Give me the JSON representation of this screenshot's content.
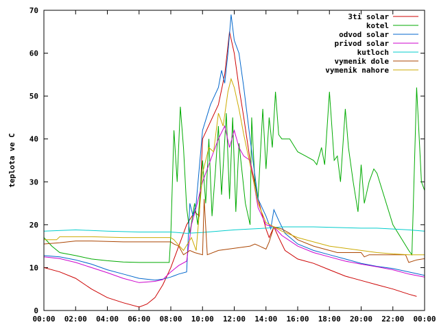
{
  "chart_data": {
    "type": "line",
    "title": "",
    "xlabel": "",
    "ylabel": "teplota ve C",
    "xlim": [
      "00:00",
      "24:00"
    ],
    "ylim": [
      0,
      70
    ],
    "x_ticks": [
      "00:00",
      "02:00",
      "04:00",
      "06:00",
      "08:00",
      "10:00",
      "12:00",
      "14:00",
      "16:00",
      "18:00",
      "20:00",
      "22:00",
      "00:00"
    ],
    "y_ticks": [
      0,
      10,
      20,
      30,
      40,
      50,
      60,
      70
    ],
    "grid": false,
    "legend_position": "top-right",
    "series": [
      {
        "name": "3ti solar",
        "color": "#cc0000",
        "points": [
          [
            0,
            10
          ],
          [
            1,
            9
          ],
          [
            2,
            7.5
          ],
          [
            3,
            5
          ],
          [
            4,
            3
          ],
          [
            5,
            1.8
          ],
          [
            6,
            0.8
          ],
          [
            6.5,
            1.5
          ],
          [
            7,
            3
          ],
          [
            7.5,
            6
          ],
          [
            8,
            10
          ],
          [
            8.5,
            15
          ],
          [
            9,
            20
          ],
          [
            9.5,
            23
          ],
          [
            9.8,
            22
          ],
          [
            10,
            40
          ],
          [
            10.5,
            44
          ],
          [
            11,
            48
          ],
          [
            11.4,
            55
          ],
          [
            11.7,
            65
          ],
          [
            12,
            60
          ],
          [
            12.3,
            52
          ],
          [
            12.6,
            45
          ],
          [
            13,
            35
          ],
          [
            13.5,
            26
          ],
          [
            14,
            19
          ],
          [
            14.2,
            17
          ],
          [
            14.5,
            19.5
          ],
          [
            14.8,
            17
          ],
          [
            15.2,
            14
          ],
          [
            16,
            12
          ],
          [
            17,
            11
          ],
          [
            18,
            9.5
          ],
          [
            19,
            8
          ],
          [
            20,
            7
          ],
          [
            21,
            6
          ],
          [
            22,
            5
          ],
          [
            23,
            3.8
          ],
          [
            23.5,
            3.3
          ]
        ]
      },
      {
        "name": "kotel",
        "color": "#00aa00",
        "points": [
          [
            0,
            17
          ],
          [
            0.5,
            15
          ],
          [
            1,
            13.5
          ],
          [
            2,
            12.8
          ],
          [
            3,
            12
          ],
          [
            4,
            11.6
          ],
          [
            5,
            11.3
          ],
          [
            6,
            11.2
          ],
          [
            7,
            11.2
          ],
          [
            7.9,
            11.2
          ],
          [
            8,
            17.5
          ],
          [
            8.2,
            42
          ],
          [
            8.4,
            30
          ],
          [
            8.6,
            47.5
          ],
          [
            8.8,
            38
          ],
          [
            9,
            24
          ],
          [
            9.2,
            18
          ],
          [
            9.5,
            25
          ],
          [
            9.7,
            20
          ],
          [
            10,
            35
          ],
          [
            10.2,
            25
          ],
          [
            10.4,
            40
          ],
          [
            10.6,
            22
          ],
          [
            10.8,
            32
          ],
          [
            11,
            43
          ],
          [
            11.2,
            27
          ],
          [
            11.5,
            46
          ],
          [
            11.7,
            26
          ],
          [
            11.9,
            45
          ],
          [
            12.1,
            23
          ],
          [
            12.3,
            39
          ],
          [
            12.5,
            32
          ],
          [
            12.7,
            25
          ],
          [
            13,
            20
          ],
          [
            13.1,
            45
          ],
          [
            13.3,
            30
          ],
          [
            13.5,
            26
          ],
          [
            13.8,
            47
          ],
          [
            14,
            33
          ],
          [
            14.2,
            45
          ],
          [
            14.4,
            38
          ],
          [
            14.6,
            51
          ],
          [
            14.8,
            41
          ],
          [
            15,
            40
          ],
          [
            15.5,
            40
          ],
          [
            16,
            37
          ],
          [
            16.5,
            36
          ],
          [
            17,
            35
          ],
          [
            17.2,
            34
          ],
          [
            17.5,
            38
          ],
          [
            17.7,
            34
          ],
          [
            18,
            51
          ],
          [
            18.3,
            35
          ],
          [
            18.5,
            36
          ],
          [
            18.7,
            30
          ],
          [
            19,
            47
          ],
          [
            19.2,
            38
          ],
          [
            19.5,
            30
          ],
          [
            19.8,
            23
          ],
          [
            20,
            34
          ],
          [
            20.2,
            25
          ],
          [
            20.5,
            30
          ],
          [
            20.8,
            33
          ],
          [
            21,
            32
          ],
          [
            22,
            20
          ],
          [
            23,
            14
          ],
          [
            23.2,
            13
          ],
          [
            23.5,
            52
          ],
          [
            23.8,
            30
          ],
          [
            24,
            28
          ],
          [
            24.2,
            18
          ]
        ]
      },
      {
        "name": "odvod solar",
        "color": "#0066cc",
        "points": [
          [
            0,
            12.8
          ],
          [
            1,
            12.5
          ],
          [
            2,
            11.8
          ],
          [
            3,
            10.8
          ],
          [
            4,
            9.5
          ],
          [
            5,
            8.5
          ],
          [
            6,
            7.5
          ],
          [
            7,
            7.1
          ],
          [
            7.5,
            7.3
          ],
          [
            8,
            7.8
          ],
          [
            8.5,
            8.5
          ],
          [
            9,
            9
          ],
          [
            9.2,
            25
          ],
          [
            9.4,
            22
          ],
          [
            9.6,
            25
          ],
          [
            10,
            42
          ],
          [
            10.5,
            48
          ],
          [
            11,
            52
          ],
          [
            11.2,
            56
          ],
          [
            11.4,
            53
          ],
          [
            11.6,
            60
          ],
          [
            11.8,
            69
          ],
          [
            12,
            63
          ],
          [
            12.3,
            60
          ],
          [
            12.6,
            52
          ],
          [
            13,
            40
          ],
          [
            13.5,
            26
          ],
          [
            14,
            22
          ],
          [
            14.3,
            19
          ],
          [
            14.5,
            23.5
          ],
          [
            14.8,
            21
          ],
          [
            15.2,
            18
          ],
          [
            16,
            15.5
          ],
          [
            17,
            14
          ],
          [
            18,
            13
          ],
          [
            19,
            12
          ],
          [
            20,
            11
          ],
          [
            21,
            10.3
          ],
          [
            22,
            9.8
          ],
          [
            23,
            9
          ],
          [
            24,
            8.2
          ]
        ]
      },
      {
        "name": "privod solar",
        "color": "#cc00cc",
        "points": [
          [
            0,
            12.5
          ],
          [
            1,
            12.1
          ],
          [
            2,
            11.2
          ],
          [
            3,
            10
          ],
          [
            4,
            8.8
          ],
          [
            5,
            7.5
          ],
          [
            6,
            6.5
          ],
          [
            7,
            6.8
          ],
          [
            7.5,
            7.2
          ],
          [
            8,
            9
          ],
          [
            8.5,
            10.5
          ],
          [
            9,
            11.5
          ],
          [
            9.3,
            20
          ],
          [
            9.6,
            24
          ],
          [
            10,
            30
          ],
          [
            10.5,
            35
          ],
          [
            11,
            40
          ],
          [
            11.4,
            43
          ],
          [
            11.7,
            38
          ],
          [
            12,
            42
          ],
          [
            12.3,
            38
          ],
          [
            12.6,
            36
          ],
          [
            13,
            35
          ],
          [
            13.5,
            24
          ],
          [
            14,
            20
          ],
          [
            14.5,
            19.5
          ],
          [
            15,
            17.5
          ],
          [
            16,
            15
          ],
          [
            17,
            13.5
          ],
          [
            18,
            12.5
          ],
          [
            19,
            11.5
          ],
          [
            20,
            10.8
          ],
          [
            21,
            10.2
          ],
          [
            22,
            9.5
          ],
          [
            23,
            8.5
          ],
          [
            24,
            7.8
          ]
        ]
      },
      {
        "name": "kutloch",
        "color": "#00cccc",
        "points": [
          [
            0,
            18.5
          ],
          [
            2,
            18.8
          ],
          [
            4,
            18.5
          ],
          [
            6,
            18.3
          ],
          [
            8,
            18.3
          ],
          [
            9,
            18
          ],
          [
            10,
            18.2
          ],
          [
            11,
            18.5
          ],
          [
            12,
            18.8
          ],
          [
            13,
            19
          ],
          [
            14,
            19.2
          ],
          [
            15,
            19.5
          ],
          [
            16,
            19.5
          ],
          [
            17,
            19.5
          ],
          [
            18,
            19.4
          ],
          [
            19,
            19.3
          ],
          [
            20,
            19.2
          ],
          [
            21,
            19.2
          ],
          [
            22,
            19
          ],
          [
            23,
            18.8
          ],
          [
            24,
            18.5
          ]
        ]
      },
      {
        "name": "vymenik dole",
        "color": "#aa4400",
        "points": [
          [
            0,
            15.5
          ],
          [
            1,
            15.8
          ],
          [
            2,
            16.2
          ],
          [
            3,
            16.2
          ],
          [
            4,
            16.1
          ],
          [
            5,
            16
          ],
          [
            6,
            16
          ],
          [
            7,
            16
          ],
          [
            8,
            16
          ],
          [
            8.2,
            15.5
          ],
          [
            8.5,
            15
          ],
          [
            8.8,
            13
          ],
          [
            9.2,
            14
          ],
          [
            9.5,
            13.5
          ],
          [
            10,
            13
          ],
          [
            10.1,
            26
          ],
          [
            10.3,
            13
          ],
          [
            11,
            14
          ],
          [
            12,
            14.5
          ],
          [
            13,
            15
          ],
          [
            13.3,
            15.5
          ],
          [
            13.6,
            15
          ],
          [
            14,
            14.3
          ],
          [
            14.2,
            16
          ],
          [
            14.5,
            19.5
          ],
          [
            15,
            19
          ],
          [
            15.5,
            18
          ],
          [
            16,
            16.5
          ],
          [
            17,
            15
          ],
          [
            18,
            14
          ],
          [
            18.5,
            13.5
          ],
          [
            19,
            13.5
          ],
          [
            20,
            13.5
          ],
          [
            20.2,
            12.5
          ],
          [
            20.5,
            13
          ],
          [
            21,
            13
          ],
          [
            22,
            13
          ],
          [
            22.8,
            13
          ],
          [
            23,
            11.2
          ],
          [
            23.5,
            11.8
          ],
          [
            24.2,
            12.2
          ]
        ]
      },
      {
        "name": "vymenik nahore",
        "color": "#ccaa00",
        "points": [
          [
            0,
            16.5
          ],
          [
            0.8,
            16.5
          ],
          [
            1,
            17.2
          ],
          [
            2,
            17.2
          ],
          [
            3,
            17.2
          ],
          [
            4,
            17.1
          ],
          [
            5,
            17
          ],
          [
            6,
            17
          ],
          [
            7,
            17
          ],
          [
            8,
            17
          ],
          [
            8.2,
            16.5
          ],
          [
            8.5,
            15.2
          ],
          [
            8.8,
            14
          ],
          [
            9.3,
            17
          ],
          [
            9.6,
            14
          ],
          [
            10,
            32
          ],
          [
            10.4,
            38
          ],
          [
            10.7,
            37
          ],
          [
            11,
            46
          ],
          [
            11.3,
            43
          ],
          [
            11.6,
            51
          ],
          [
            11.8,
            54
          ],
          [
            12,
            52
          ],
          [
            12.3,
            47
          ],
          [
            12.6,
            41
          ],
          [
            13,
            34
          ],
          [
            13.5,
            25
          ],
          [
            14,
            20.5
          ],
          [
            14.5,
            19.5
          ],
          [
            15,
            18.5
          ],
          [
            16,
            17
          ],
          [
            17,
            16
          ],
          [
            18,
            15
          ],
          [
            19,
            14.5
          ],
          [
            20,
            14
          ],
          [
            21,
            13.5
          ],
          [
            22,
            13.2
          ],
          [
            23,
            13
          ],
          [
            24,
            13
          ]
        ]
      }
    ]
  }
}
